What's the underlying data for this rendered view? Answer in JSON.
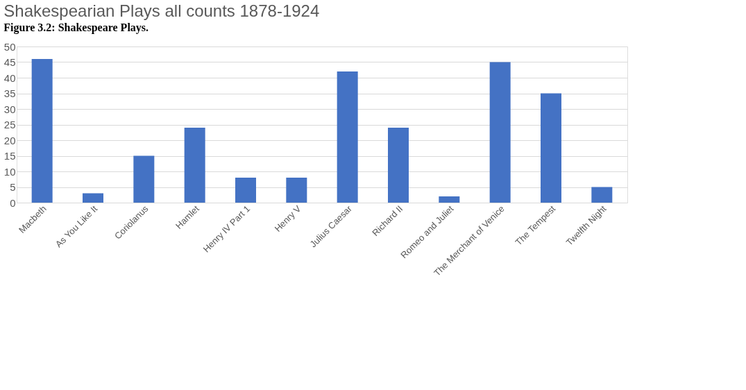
{
  "chart_data": {
    "type": "bar",
    "title": "Shakespearian Plays all counts 1878-1924",
    "annotations": [
      "Figure 3.2: Shakespeare Plays."
    ],
    "categories": [
      "Macbeth",
      "As You Like It",
      "Coriolanus",
      "Hamlet",
      "Henry IV Part 1",
      "Henry V",
      "Julius Caesar",
      "Richard II",
      "Romeo and Juliet",
      "The Merchant of Venice",
      "The Tempest",
      "Twelfth Night"
    ],
    "values": [
      46,
      3,
      15,
      24,
      8,
      8,
      42,
      24,
      2,
      45,
      35,
      5
    ],
    "color": "#4472c4",
    "ylim": [
      0,
      50
    ],
    "yticks": [
      0,
      5,
      10,
      15,
      20,
      25,
      30,
      35,
      40,
      45,
      50
    ],
    "grid": "y"
  }
}
